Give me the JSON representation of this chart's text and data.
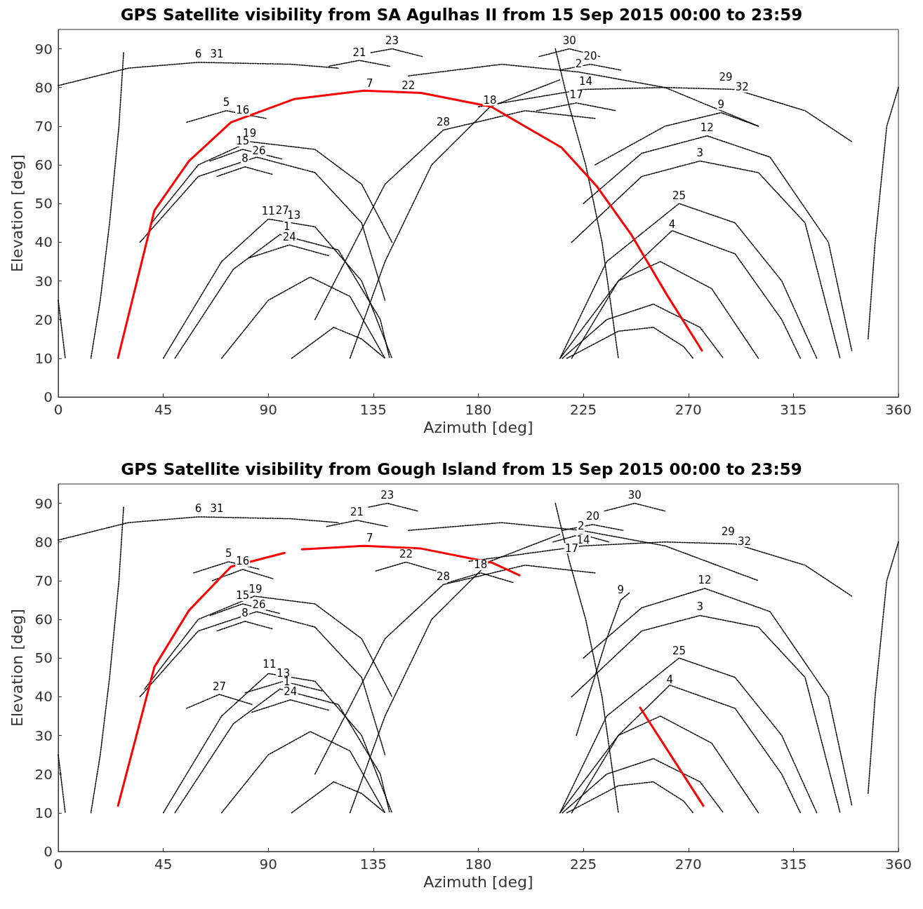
{
  "chart_data": [
    {
      "type": "line",
      "title": "GPS Satellite visibility from SA Agulhas II from 15 Sep 2015 00:00 to 23:59",
      "xlabel": "Azimuth [deg]",
      "ylabel": "Elevation [deg]",
      "xlim": [
        0,
        360
      ],
      "xticks": [
        0,
        45,
        90,
        135,
        180,
        225,
        270,
        315,
        360
      ],
      "ylim": [
        0,
        95
      ],
      "yticks": [
        0,
        10,
        20,
        30,
        40,
        50,
        60,
        70,
        80,
        90
      ],
      "grid": false,
      "marker": "none",
      "line_style": "dotted",
      "series": [
        {
          "color": "#000000",
          "x": [
            0,
            30,
            60,
            100,
            120
          ],
          "values": [
            80.5,
            85,
            86.5,
            86,
            85
          ]
        },
        {
          "color": "#000000",
          "x": [
            28,
            26,
            22,
            18,
            14
          ],
          "values": [
            89,
            70,
            45,
            25,
            10
          ]
        },
        {
          "color": "#000000",
          "x": [
            213,
            219,
            226,
            233,
            240
          ],
          "values": [
            90,
            75,
            60,
            40,
            10
          ]
        },
        {
          "color": "#000000",
          "x": [
            180,
            225,
            260,
            290,
            320,
            340
          ],
          "values": [
            75,
            79.5,
            80,
            79.5,
            74,
            66
          ]
        },
        {
          "color": "#000000",
          "x": [
            150,
            190,
            223,
            260,
            300
          ],
          "values": [
            83,
            86,
            84,
            80,
            70
          ]
        },
        {
          "color": "#000000",
          "x": [
            40,
            60,
            82,
            110,
            130,
            143
          ],
          "values": [
            45,
            60,
            66,
            64,
            55,
            40
          ]
        },
        {
          "color": "#000000",
          "x": [
            35,
            60,
            85,
            110,
            130,
            140
          ],
          "values": [
            40,
            57,
            62,
            58,
            45,
            25
          ]
        },
        {
          "color": "#000000",
          "x": [
            45,
            70,
            90,
            110,
            130,
            143
          ],
          "values": [
            10,
            35,
            46,
            44,
            30,
            10
          ]
        },
        {
          "color": "#000000",
          "x": [
            50,
            75,
            95,
            120,
            138,
            142
          ],
          "values": [
            10,
            33,
            42,
            38,
            20,
            10
          ]
        },
        {
          "color": "#000000",
          "x": [
            70,
            90,
            108,
            125,
            140
          ],
          "values": [
            10,
            25,
            31,
            26,
            10
          ]
        },
        {
          "color": "#000000",
          "x": [
            100,
            118,
            130,
            140
          ],
          "values": [
            10,
            18,
            15,
            10
          ]
        },
        {
          "color": "#000000",
          "x": [
            110,
            140,
            165,
            200,
            230
          ],
          "values": [
            20,
            55,
            69,
            74,
            72
          ]
        },
        {
          "color": "#000000",
          "x": [
            125,
            140,
            160,
            185,
            215
          ],
          "values": [
            10,
            35,
            60,
            75,
            82
          ]
        },
        {
          "color": "#000000",
          "x": [
            215,
            235,
            266,
            290,
            310,
            325
          ],
          "values": [
            10,
            35,
            50,
            45,
            30,
            10
          ]
        },
        {
          "color": "#000000",
          "x": [
            220,
            240,
            263,
            290,
            310,
            318
          ],
          "values": [
            10,
            30,
            43,
            37,
            20,
            10
          ]
        },
        {
          "color": "#000000",
          "x": [
            220,
            250,
            275,
            300,
            320,
            335
          ],
          "values": [
            40,
            57,
            61,
            58,
            45,
            10
          ]
        },
        {
          "color": "#000000",
          "x": [
            225,
            250,
            278,
            305,
            330,
            340
          ],
          "values": [
            50,
            63,
            67.5,
            62,
            40,
            12
          ]
        },
        {
          "color": "#000000",
          "x": [
            230,
            260,
            284,
            300
          ],
          "values": [
            60,
            70,
            73.5,
            70
          ]
        },
        {
          "color": "#000000",
          "x": [
            215,
            240,
            258,
            280,
            300
          ],
          "values": [
            10,
            30,
            35,
            28,
            10
          ]
        },
        {
          "color": "#000000",
          "x": [
            216,
            235,
            255,
            275,
            285
          ],
          "values": [
            10,
            20,
            24,
            18,
            10
          ]
        },
        {
          "color": "#000000",
          "x": [
            218,
            240,
            255,
            268,
            272
          ],
          "values": [
            10,
            17,
            18,
            13,
            10
          ]
        },
        {
          "color": "#000000",
          "x": [
            360,
            355,
            350,
            347
          ],
          "values": [
            80,
            70,
            40,
            15
          ]
        },
        {
          "color": "#000000",
          "x": [
            0,
            2,
            3
          ],
          "values": [
            25,
            15,
            10
          ]
        },
        {
          "color": "#000000",
          "x": [
            134,
            143,
            156
          ],
          "values": [
            89,
            90,
            88
          ]
        },
        {
          "color": "#000000",
          "x": [
            206,
            219,
            232
          ],
          "values": [
            88,
            90,
            88
          ]
        },
        {
          "color": "#000000",
          "x": [
            116,
            129,
            142
          ],
          "values": [
            85.5,
            87,
            85.5
          ]
        },
        {
          "color": "#000000",
          "x": [
            215,
            228,
            241
          ],
          "values": [
            84.5,
            86,
            84.5
          ]
        },
        {
          "color": "#000000",
          "x": [
            205,
            222,
            239
          ],
          "values": [
            74,
            76,
            74
          ]
        },
        {
          "color": "#000000",
          "x": [
            55,
            72,
            89
          ],
          "values": [
            71,
            74,
            72
          ]
        },
        {
          "color": "#000000",
          "x": [
            65,
            79,
            96
          ],
          "values": [
            61,
            64,
            61.5
          ]
        },
        {
          "color": "#000000",
          "x": [
            82,
            99,
            116
          ],
          "values": [
            36,
            39.3,
            36.5
          ]
        },
        {
          "color": "#000000",
          "x": [
            68,
            80,
            92
          ],
          "values": [
            57,
            59.5,
            57.5
          ]
        },
        {
          "color": "#ff0000",
          "line_style": "solid",
          "x": [
            25.6,
            41.2,
            56,
            74,
            101,
            131,
            155.5,
            185.6,
            215.6,
            230.7,
            245.7,
            260.8,
            275.8
          ],
          "values": [
            10.1,
            48.2,
            61,
            71,
            77,
            79.2,
            78.6,
            75,
            64.5,
            54.5,
            41.8,
            26.4,
            12
          ]
        }
      ],
      "annotations": [
        {
          "text": "23",
          "x": 143,
          "y": 90
        },
        {
          "text": "30",
          "x": 219,
          "y": 90
        },
        {
          "text": "6",
          "x": 60,
          "y": 86.5
        },
        {
          "text": "31",
          "x": 68,
          "y": 86.5
        },
        {
          "text": "21",
          "x": 129,
          "y": 87
        },
        {
          "text": "20",
          "x": 228,
          "y": 86
        },
        {
          "text": "2",
          "x": 223,
          "y": 84
        },
        {
          "text": "7",
          "x": 133.5,
          "y": 79
        },
        {
          "text": "22",
          "x": 150,
          "y": 78.5
        },
        {
          "text": "14",
          "x": 226,
          "y": 79.5
        },
        {
          "text": "29",
          "x": 286,
          "y": 80.5
        },
        {
          "text": "32",
          "x": 293,
          "y": 78
        },
        {
          "text": "17",
          "x": 222,
          "y": 76
        },
        {
          "text": "5",
          "x": 72,
          "y": 74
        },
        {
          "text": "16",
          "x": 79,
          "y": 72
        },
        {
          "text": "18",
          "x": 185,
          "y": 74.6
        },
        {
          "text": "9",
          "x": 284,
          "y": 73.5
        },
        {
          "text": "28",
          "x": 165,
          "y": 69
        },
        {
          "text": "12",
          "x": 278,
          "y": 67.5
        },
        {
          "text": "19",
          "x": 82,
          "y": 66
        },
        {
          "text": "15",
          "x": 79,
          "y": 64
        },
        {
          "text": "26",
          "x": 86,
          "y": 61.5
        },
        {
          "text": "8",
          "x": 80,
          "y": 59.5
        },
        {
          "text": "3",
          "x": 275,
          "y": 61
        },
        {
          "text": "25",
          "x": 266,
          "y": 50
        },
        {
          "text": "11",
          "x": 90,
          "y": 46
        },
        {
          "text": "27",
          "x": 96,
          "y": 46.2
        },
        {
          "text": "13",
          "x": 101,
          "y": 44.9
        },
        {
          "text": "1",
          "x": 98,
          "y": 42
        },
        {
          "text": "24",
          "x": 99,
          "y": 39.3
        },
        {
          "text": "4",
          "x": 263,
          "y": 42.6
        }
      ]
    },
    {
      "type": "line",
      "title": "GPS Satellite visibility from Gough Island from 15 Sep 2015 00:00 to 23:59",
      "xlabel": "Azimuth [deg]",
      "ylabel": "Elevation [deg]",
      "xlim": [
        0,
        360
      ],
      "xticks": [
        0,
        45,
        90,
        135,
        180,
        225,
        270,
        315,
        360
      ],
      "ylim": [
        0,
        95
      ],
      "yticks": [
        0,
        10,
        20,
        30,
        40,
        50,
        60,
        70,
        80,
        90
      ],
      "grid": false,
      "marker": "none",
      "line_style": "dotted",
      "series": [
        {
          "color": "#000000",
          "x": [
            0,
            30,
            60,
            100,
            120
          ],
          "values": [
            80.5,
            85,
            86.5,
            86,
            85
          ]
        },
        {
          "color": "#000000",
          "x": [
            28,
            26,
            22,
            18,
            14
          ],
          "values": [
            89,
            70,
            45,
            25,
            10
          ]
        },
        {
          "color": "#000000",
          "x": [
            213,
            219,
            226,
            233,
            240
          ],
          "values": [
            90,
            75,
            60,
            40,
            10
          ]
        },
        {
          "color": "#000000",
          "x": [
            176,
            225,
            260,
            290,
            320,
            340
          ],
          "values": [
            75,
            79,
            80,
            79.5,
            74,
            66
          ]
        },
        {
          "color": "#000000",
          "x": [
            150,
            190,
            224,
            260,
            300
          ],
          "values": [
            83,
            85,
            83,
            79,
            70
          ]
        },
        {
          "color": "#000000",
          "x": [
            37,
            60,
            84,
            110,
            130,
            143
          ],
          "values": [
            42,
            60,
            66,
            64,
            55,
            40
          ]
        },
        {
          "color": "#000000",
          "x": [
            35,
            60,
            85,
            110,
            130,
            140
          ],
          "values": [
            40,
            57,
            62,
            58,
            45,
            25
          ]
        },
        {
          "color": "#000000",
          "x": [
            45,
            70,
            90,
            110,
            130,
            143
          ],
          "values": [
            10,
            35,
            46,
            44,
            30,
            10
          ]
        },
        {
          "color": "#000000",
          "x": [
            50,
            75,
            95,
            120,
            138,
            142
          ],
          "values": [
            10,
            33,
            42,
            38,
            20,
            10
          ]
        },
        {
          "color": "#000000",
          "x": [
            70,
            90,
            108,
            125,
            140
          ],
          "values": [
            10,
            25,
            31,
            26,
            10
          ]
        },
        {
          "color": "#000000",
          "x": [
            100,
            118,
            130,
            140
          ],
          "values": [
            10,
            18,
            15,
            10
          ]
        },
        {
          "color": "#000000",
          "x": [
            110,
            140,
            165,
            200,
            230
          ],
          "values": [
            20,
            55,
            69,
            74,
            72
          ]
        },
        {
          "color": "#000000",
          "x": [
            125,
            140,
            160,
            185,
            215
          ],
          "values": [
            10,
            35,
            60,
            75,
            82
          ]
        },
        {
          "color": "#000000",
          "x": [
            215,
            235,
            266,
            290,
            310,
            325
          ],
          "values": [
            10,
            35,
            50,
            45,
            30,
            10
          ]
        },
        {
          "color": "#000000",
          "x": [
            220,
            240,
            262,
            290,
            310,
            318
          ],
          "values": [
            10,
            30,
            43,
            37,
            20,
            10
          ]
        },
        {
          "color": "#000000",
          "x": [
            220,
            250,
            275,
            300,
            320,
            335
          ],
          "values": [
            40,
            57,
            61,
            58,
            45,
            10
          ]
        },
        {
          "color": "#000000",
          "x": [
            225,
            250,
            277,
            305,
            330,
            340
          ],
          "values": [
            50,
            63,
            68,
            62,
            40,
            12
          ]
        },
        {
          "color": "#000000",
          "x": [
            222,
            235,
            241,
            245
          ],
          "values": [
            30,
            55,
            65,
            67
          ]
        },
        {
          "color": "#000000",
          "x": [
            215,
            240,
            258,
            280,
            300
          ],
          "values": [
            10,
            30,
            35,
            28,
            10
          ]
        },
        {
          "color": "#000000",
          "x": [
            216,
            235,
            255,
            275,
            285
          ],
          "values": [
            10,
            20,
            24,
            18,
            10
          ]
        },
        {
          "color": "#000000",
          "x": [
            218,
            240,
            255,
            268,
            272
          ],
          "values": [
            10,
            17,
            18,
            13,
            10
          ]
        },
        {
          "color": "#000000",
          "x": [
            360,
            355,
            350,
            347
          ],
          "values": [
            80,
            70,
            40,
            15
          ]
        },
        {
          "color": "#000000",
          "x": [
            0,
            2,
            3
          ],
          "values": [
            25,
            15,
            10
          ]
        },
        {
          "color": "#000000",
          "x": [
            133,
            141,
            154
          ],
          "values": [
            89,
            90,
            88
          ]
        },
        {
          "color": "#000000",
          "x": [
            234,
            247,
            260
          ],
          "values": [
            88,
            90,
            88
          ]
        },
        {
          "color": "#000000",
          "x": [
            115,
            128,
            141
          ],
          "values": [
            84,
            85.6,
            84
          ]
        },
        {
          "color": "#000000",
          "x": [
            216,
            229,
            242
          ],
          "values": [
            83,
            84.5,
            83
          ]
        },
        {
          "color": "#000000",
          "x": [
            212,
            224,
            236
          ],
          "values": [
            80,
            82,
            80
          ]
        },
        {
          "color": "#000000",
          "x": [
            58,
            73,
            86
          ],
          "values": [
            72,
            74.9,
            73
          ]
        },
        {
          "color": "#000000",
          "x": [
            66,
            79,
            92
          ],
          "values": [
            70,
            72.9,
            70.5
          ]
        },
        {
          "color": "#000000",
          "x": [
            167,
            181,
            195
          ],
          "values": [
            69.5,
            72,
            69.5
          ]
        },
        {
          "color": "#000000",
          "x": [
            65,
            79,
            95
          ],
          "values": [
            61,
            64,
            61.5
          ]
        },
        {
          "color": "#000000",
          "x": [
            80,
            96.5,
            113
          ],
          "values": [
            41,
            44,
            41.5
          ]
        },
        {
          "color": "#000000",
          "x": [
            83,
            99.5,
            116
          ],
          "values": [
            36,
            39.2,
            36.5
          ]
        },
        {
          "color": "#000000",
          "x": [
            55,
            69,
            83
          ],
          "values": [
            37,
            40.6,
            38
          ]
        },
        {
          "color": "#000000",
          "x": [
            68,
            80,
            92
          ],
          "values": [
            57,
            59.5,
            57.5
          ]
        },
        {
          "color": "#000000",
          "x": [
            136,
            149,
            162
          ],
          "values": [
            72.5,
            74.8,
            72.5
          ]
        },
        {
          "color": "#ff0000",
          "line_style": "solid",
          "x": [
            25.6,
            41.2,
            56,
            74,
            97,
            null,
            104.4,
            131,
            155.5,
            185.6,
            197.6,
            null,
            249.3,
            276.4
          ],
          "values": [
            11.8,
            47.7,
            62.3,
            73.6,
            77.2,
            null,
            78.1,
            79,
            78.3,
            74.7,
            71.4,
            null,
            37.2,
            11.8
          ]
        }
      ],
      "annotations": [
        {
          "text": "23",
          "x": 141,
          "y": 90
        },
        {
          "text": "30",
          "x": 247,
          "y": 90
        },
        {
          "text": "6",
          "x": 60,
          "y": 86.5
        },
        {
          "text": "31",
          "x": 68,
          "y": 86.5
        },
        {
          "text": "21",
          "x": 128,
          "y": 85.6
        },
        {
          "text": "20",
          "x": 229,
          "y": 84.5
        },
        {
          "text": "2",
          "x": 224,
          "y": 82
        },
        {
          "text": "29",
          "x": 287,
          "y": 80.5
        },
        {
          "text": "32",
          "x": 294,
          "y": 78
        },
        {
          "text": "7",
          "x": 133.5,
          "y": 79
        },
        {
          "text": "22",
          "x": 149,
          "y": 74.8
        },
        {
          "text": "14",
          "x": 225,
          "y": 78.5
        },
        {
          "text": "17",
          "x": 220,
          "y": 76.3
        },
        {
          "text": "5",
          "x": 73,
          "y": 74.9
        },
        {
          "text": "16",
          "x": 79,
          "y": 72.9
        },
        {
          "text": "18",
          "x": 181,
          "y": 72
        },
        {
          "text": "28",
          "x": 165,
          "y": 69
        },
        {
          "text": "12",
          "x": 277,
          "y": 68
        },
        {
          "text": "9",
          "x": 241,
          "y": 65.6
        },
        {
          "text": "19",
          "x": 84.5,
          "y": 65.8
        },
        {
          "text": "15",
          "x": 79,
          "y": 64
        },
        {
          "text": "26",
          "x": 86,
          "y": 61.7
        },
        {
          "text": "8",
          "x": 80,
          "y": 59.5
        },
        {
          "text": "3",
          "x": 275,
          "y": 61.2
        },
        {
          "text": "25",
          "x": 266,
          "y": 49.7
        },
        {
          "text": "11",
          "x": 90.5,
          "y": 46.3
        },
        {
          "text": "13",
          "x": 96.5,
          "y": 44
        },
        {
          "text": "1",
          "x": 98,
          "y": 41.7
        },
        {
          "text": "24",
          "x": 99.5,
          "y": 39.2
        },
        {
          "text": "27",
          "x": 69,
          "y": 40.6
        },
        {
          "text": "4",
          "x": 262,
          "y": 42.4
        }
      ]
    }
  ]
}
